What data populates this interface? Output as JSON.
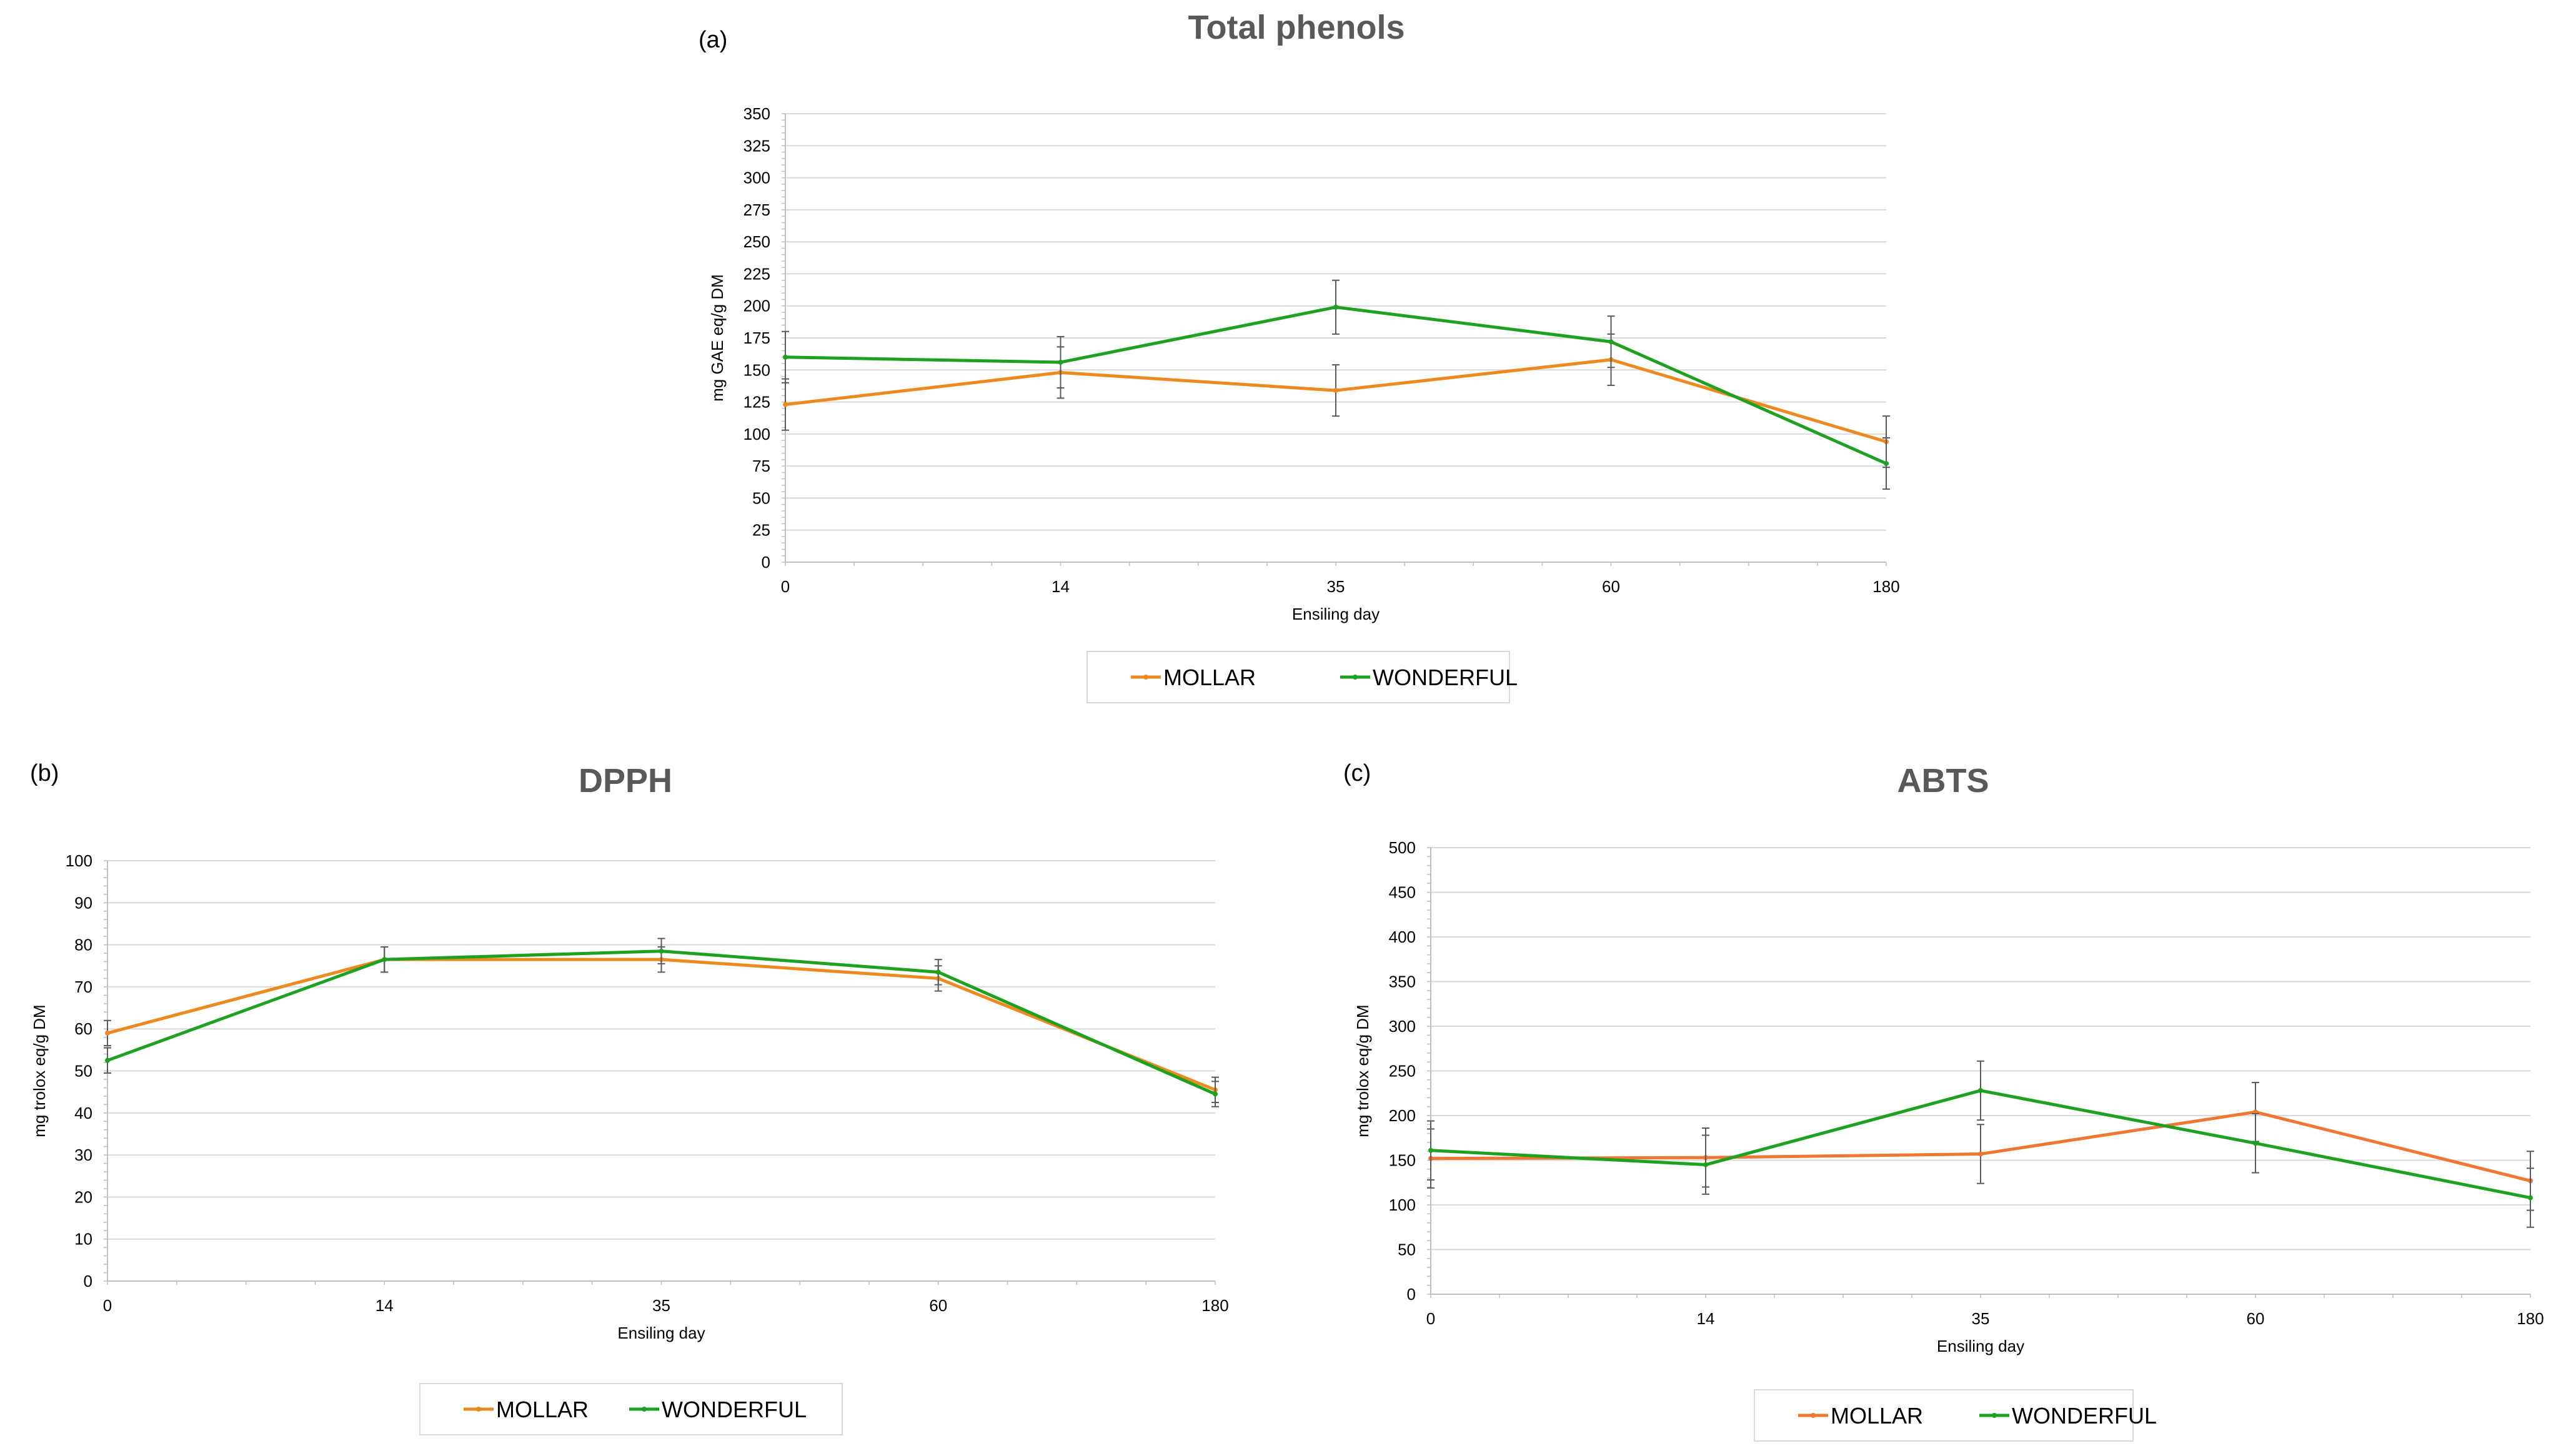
{
  "figure": {
    "panels": [
      "(a)",
      "(b)",
      "(c)"
    ]
  },
  "colors": {
    "mollar_a": "#ED8A1F",
    "wonderful": "#1EA121",
    "mollar_c": "#EE7733",
    "grid": "#D9D9D9",
    "title": "#595959"
  },
  "chart_data": [
    {
      "panel": "(a)",
      "type": "line",
      "title": "Total phenols",
      "xlabel": "Ensiling day",
      "ylabel": "mg GAE eq/g DM",
      "categories": [
        "0",
        "14",
        "35",
        "60",
        "180"
      ],
      "ylim": [
        0,
        350
      ],
      "ystep": 25,
      "grid": true,
      "legend": "bottom",
      "series": [
        {
          "name": "MOLLAR",
          "values": [
            123,
            148,
            134,
            158,
            94
          ],
          "errors": [
            20,
            20,
            20,
            20,
            20
          ]
        },
        {
          "name": "WONDERFUL",
          "values": [
            160,
            156,
            199,
            172,
            77
          ],
          "errors": [
            20,
            20,
            21,
            20,
            20
          ]
        }
      ]
    },
    {
      "panel": "(b)",
      "type": "line",
      "title": "DPPH",
      "xlabel": "Ensiling day",
      "ylabel": "mg trolox eq/g DM",
      "categories": [
        "0",
        "14",
        "35",
        "60",
        "180"
      ],
      "ylim": [
        0,
        100
      ],
      "ystep": 10,
      "grid": true,
      "legend": "bottom",
      "series": [
        {
          "name": "MOLLAR",
          "values": [
            59,
            76.5,
            76.5,
            72,
            45.5
          ],
          "errors": [
            3,
            3,
            3,
            3,
            3
          ]
        },
        {
          "name": "WONDERFUL",
          "values": [
            52.5,
            76.5,
            78.5,
            73.5,
            44.5
          ],
          "errors": [
            3,
            3,
            3,
            3,
            3
          ]
        }
      ]
    },
    {
      "panel": "(c)",
      "type": "line",
      "title": "ABTS",
      "xlabel": "Ensiling day",
      "ylabel": "mg trolox eq/g DM",
      "categories": [
        "0",
        "14",
        "35",
        "60",
        "180"
      ],
      "ylim": [
        0,
        500
      ],
      "ystep": 50,
      "grid": true,
      "legend": "bottom",
      "series": [
        {
          "name": "MOLLAR",
          "values": [
            152,
            153,
            157,
            204,
            127
          ],
          "errors": [
            33,
            33,
            33,
            33,
            33
          ]
        },
        {
          "name": "WONDERFUL",
          "values": [
            161,
            145,
            228,
            169,
            108
          ],
          "errors": [
            33,
            33,
            33,
            33,
            33
          ]
        }
      ]
    }
  ]
}
